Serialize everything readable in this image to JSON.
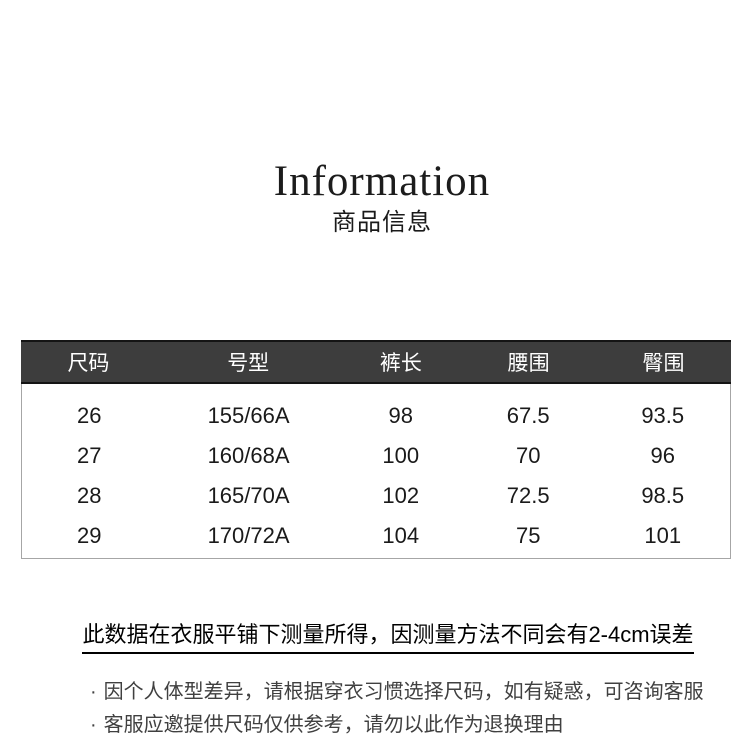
{
  "header": {
    "title_en": "Information",
    "title_zh": "商品信息"
  },
  "size_chart": {
    "columns": [
      "尺码",
      "号型",
      "裤长",
      "腰围",
      "臀围"
    ],
    "rows": [
      [
        "26",
        "155/66A",
        "98",
        "67.5",
        "93.5"
      ],
      [
        "27",
        "160/68A",
        "100",
        "70",
        "96"
      ],
      [
        "28",
        "165/70A",
        "102",
        "72.5",
        "98.5"
      ],
      [
        "29",
        "170/72A",
        "104",
        "75",
        "101"
      ]
    ]
  },
  "notes": {
    "bullet": "·",
    "measurement_note": "此数据在衣服平铺下测量所得，因测量方法不同会有2-4cm误差",
    "tips": [
      "因个人体型差异，请根据穿衣习惯选择尺码，如有疑惑，可咨询客服",
      "客服应邀提供尺码仅供参考，请勿以此作为退换理由"
    ]
  },
  "colors": {
    "background": "#ffffff",
    "table_header_bg": "#3d3d3d",
    "table_header_border": "#141414",
    "table_header_text": "#ffffff",
    "table_body_border": "#a6a6a6",
    "body_text": "#1a1a1a",
    "note_text": "#000000",
    "tip_text": "#404040"
  }
}
